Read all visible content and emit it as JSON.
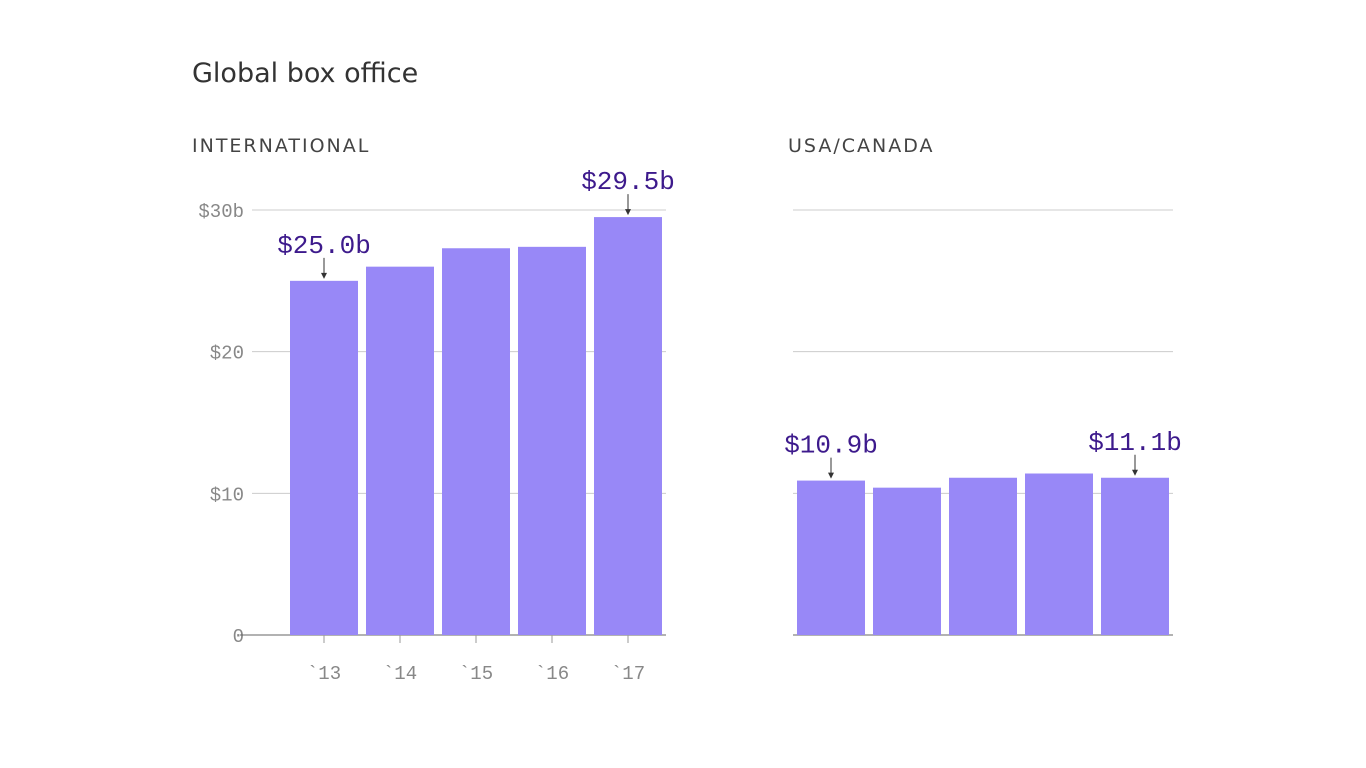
{
  "title": "Global box office",
  "chart_data": [
    {
      "type": "bar",
      "subtitle": "INTERNATIONAL",
      "categories": [
        "`13",
        "`14",
        "`15",
        "`16",
        "`17"
      ],
      "values": [
        25.0,
        26.0,
        27.3,
        27.4,
        29.5
      ],
      "value_labels": [
        "$25.0b",
        null,
        null,
        null,
        "$29.5b"
      ],
      "color": "#9888f7",
      "ylim": [
        0,
        30
      ],
      "yticks": [
        0,
        {
          "value": 10,
          "label": "$10"
        },
        {
          "value": 20,
          "label": "$20"
        },
        {
          "value": 30,
          "label": "$30b"
        }
      ],
      "grid": true,
      "show_tick_labels": true
    },
    {
      "type": "bar",
      "subtitle": "USA/CANADA",
      "values": [
        10.9,
        10.4,
        11.1,
        11.4,
        11.1
      ],
      "value_labels": [
        "$10.9b",
        null,
        null,
        null,
        "$11.1b"
      ],
      "color": "#9888f7",
      "ylim": [
        0,
        30
      ],
      "yticks": [
        0,
        10,
        20,
        30
      ],
      "grid": true,
      "show_tick_labels": false
    }
  ]
}
